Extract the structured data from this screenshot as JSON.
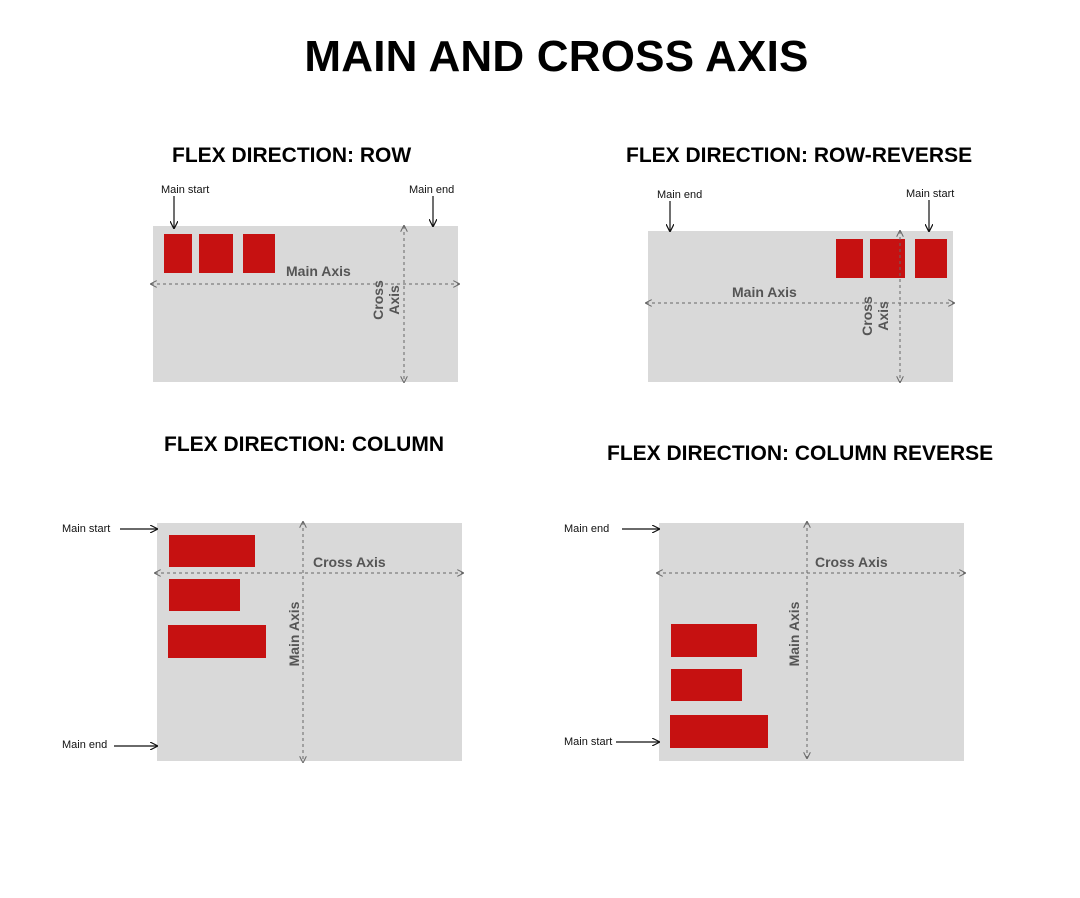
{
  "title": "MAIN AND CROSS AXIS",
  "colors": {
    "container": "#d9d9d9",
    "item": "#c61111",
    "axis": "#555555"
  },
  "panels": {
    "row": {
      "title": "FLEX DIRECTION: ROW",
      "main_start": "Main start",
      "main_end": "Main end",
      "main_axis": "Main Axis",
      "cross_axis_1": "Cross",
      "cross_axis_2": "Axis"
    },
    "row_reverse": {
      "title": "FLEX DIRECTION: ROW-REVERSE",
      "main_end": "Main end",
      "main_start": "Main start",
      "main_axis": "Main Axis",
      "cross_axis_1": "Cross",
      "cross_axis_2": "Axis"
    },
    "column": {
      "title": "FLEX DIRECTION: COLUMN",
      "main_start": "Main start",
      "main_end": "Main end",
      "cross_axis": "Cross Axis",
      "main_axis": "Main Axis"
    },
    "column_reverse": {
      "title": "FLEX DIRECTION: COLUMN REVERSE",
      "main_end": "Main end",
      "main_start": "Main start",
      "cross_axis": "Cross Axis",
      "main_axis": "Main Axis"
    }
  }
}
